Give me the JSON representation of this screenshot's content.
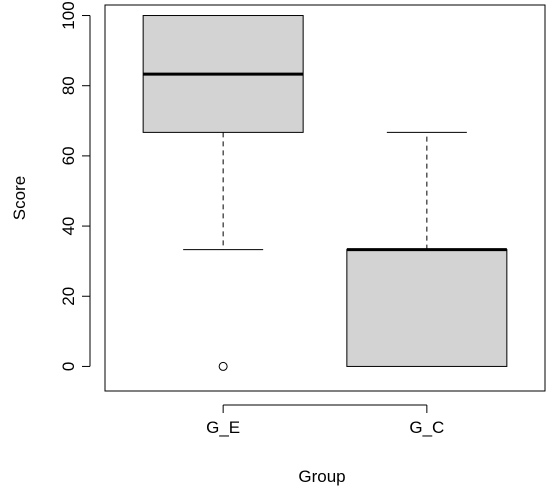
{
  "chart_data": {
    "type": "boxplot",
    "title": "",
    "xlabel": "Group",
    "ylabel": "Score",
    "ylim": [
      -7,
      103
    ],
    "yticks": [
      0,
      20,
      40,
      60,
      80,
      100
    ],
    "ytick_labels": [
      "0",
      "20",
      "40",
      "60",
      "80",
      "100"
    ],
    "grid": false,
    "box_fill": "#d3d3d3",
    "line_color": "#000000",
    "groups": [
      {
        "label": "G_E",
        "whisker_low": 33.3,
        "q1": 66.7,
        "median": 83.3,
        "q3": 100,
        "whisker_high": 100,
        "outliers": [
          0
        ]
      },
      {
        "label": "G_C",
        "whisker_low": 0,
        "q1": 0,
        "median": 33.3,
        "q3": 33.3,
        "whisker_high": 66.7,
        "outliers": []
      }
    ]
  }
}
